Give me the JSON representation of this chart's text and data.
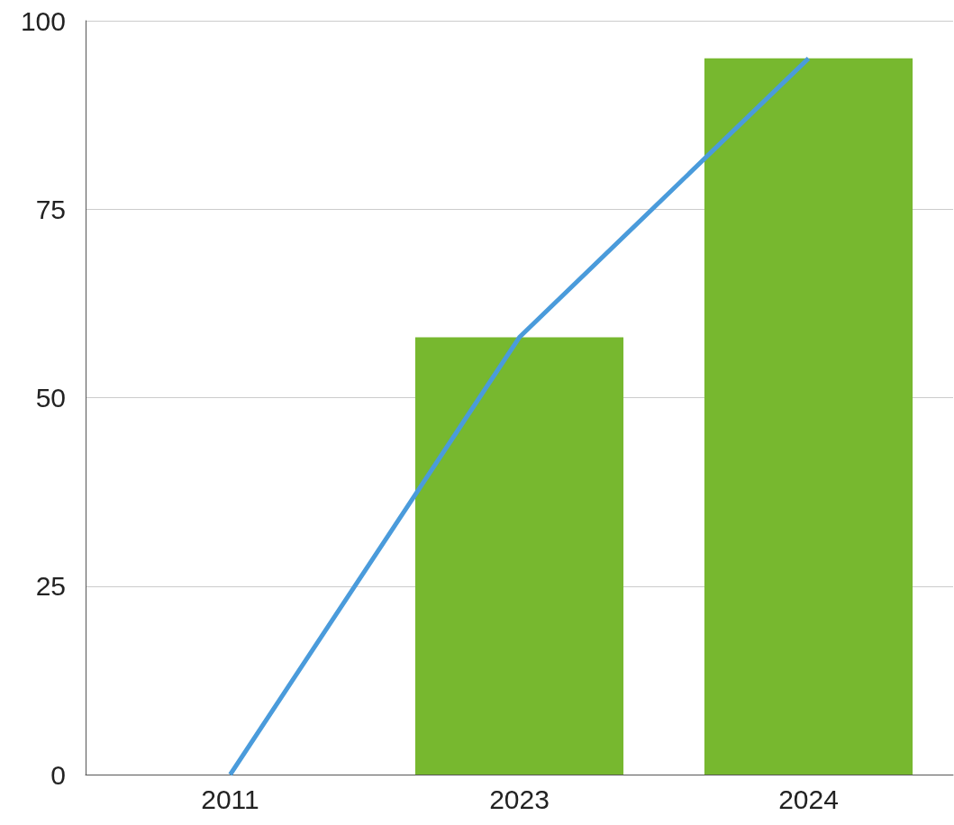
{
  "chart_data": {
    "type": "bar",
    "categories": [
      "2011",
      "2023",
      "2024"
    ],
    "series": [
      {
        "color": "#77b82f",
        "values": [
          0,
          58,
          95
        ]
      },
      {
        "type": "line",
        "color": "#4a9bdb",
        "values": [
          0,
          58,
          95
        ]
      }
    ],
    "ylim": [
      0,
      100
    ],
    "yticks": [
      0,
      25,
      50,
      75,
      100
    ],
    "grid": "y",
    "marker": "none",
    "line_style": "solid"
  }
}
